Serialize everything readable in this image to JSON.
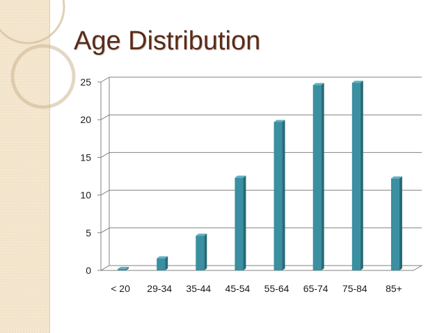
{
  "slide": {
    "title": "Age Distribution"
  },
  "chart_data": {
    "type": "bar",
    "title": "",
    "xlabel": "",
    "ylabel": "",
    "categories": [
      "< 20",
      "29-34",
      "35-44",
      "45-54",
      "55-64",
      "65-74",
      "75-84",
      "85+"
    ],
    "values": [
      0.2,
      1.6,
      4.6,
      12.3,
      19.7,
      24.6,
      24.9,
      12.2
    ],
    "ylim": [
      0,
      25
    ],
    "yticks": [
      0,
      5,
      10,
      15,
      20,
      25
    ],
    "grid": true,
    "legend": "none",
    "colors": {
      "bar_front": "#3a8fa0",
      "bar_side": "#256b78",
      "bar_top": "#5fb1c0",
      "gridline": "#808080",
      "title": "#5b2b17"
    }
  }
}
